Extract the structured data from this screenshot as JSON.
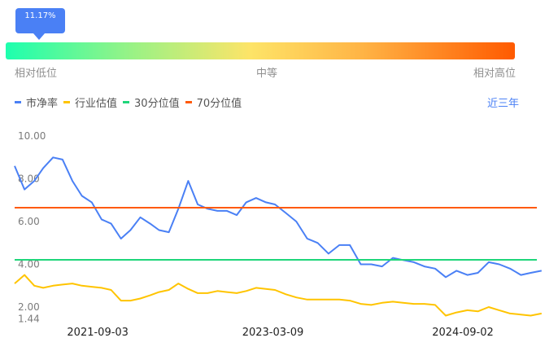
{
  "gauge": {
    "percentile_label": "11.17%",
    "percentile": 11.17,
    "low_label": "相对低位",
    "mid_label": "中等",
    "high_label": "相对高位"
  },
  "legend": [
    {
      "name": "市净率",
      "color": "#4a80f5"
    },
    {
      "name": "行业估值",
      "color": "#ffc400"
    },
    {
      "name": "30分位值",
      "color": "#1fd67a"
    },
    {
      "name": "70分位值",
      "color": "#ff5a0a"
    }
  ],
  "range_button": "近三年",
  "chart_data": {
    "type": "line",
    "ylim": [
      1.44,
      10.0
    ],
    "y_ticks": [
      "10.00",
      "8.00",
      "6.00",
      "4.00",
      "2.00",
      "1.44"
    ],
    "x_ticks": [
      "2021-09-03",
      "2023-03-09",
      "2024-09-02"
    ],
    "grid": false,
    "legend_placement": "top-left",
    "x": [
      "2020-12",
      "2021-01",
      "2021-02",
      "2021-03",
      "2021-04",
      "2021-05",
      "2021-06",
      "2021-07",
      "2021-08",
      "2021-09",
      "2021-10",
      "2021-11",
      "2021-12",
      "2022-01",
      "2022-02",
      "2022-03",
      "2022-04",
      "2022-05",
      "2022-06",
      "2022-07",
      "2022-08",
      "2022-09",
      "2022-10",
      "2022-11",
      "2022-12",
      "2023-01",
      "2023-02",
      "2023-03",
      "2023-04",
      "2023-05",
      "2023-06",
      "2023-07",
      "2023-08",
      "2023-09",
      "2023-10",
      "2023-11",
      "2023-12",
      "2024-01",
      "2024-02",
      "2024-03",
      "2024-04",
      "2024-05",
      "2024-06",
      "2024-07",
      "2024-08",
      "2024-09",
      "2024-10",
      "2024-11",
      "2024-12",
      "2025-01",
      "2025-02",
      "2025-03",
      "2025-04"
    ],
    "series": [
      {
        "name": "市净率",
        "values": [
          8.6,
          7.5,
          7.9,
          8.5,
          9.0,
          8.9,
          7.9,
          7.2,
          6.9,
          6.1,
          5.9,
          5.2,
          5.6,
          6.2,
          5.9,
          5.6,
          5.5,
          6.6,
          7.9,
          6.8,
          6.6,
          6.5,
          6.5,
          6.3,
          6.9,
          7.1,
          6.9,
          6.8,
          6.4,
          6.0,
          5.2,
          5.0,
          4.5,
          4.9,
          4.9,
          4.0,
          4.0,
          3.9,
          4.3,
          4.2,
          4.1,
          3.9,
          3.8,
          3.4,
          3.7,
          3.5,
          3.6,
          4.1,
          4.0,
          3.8,
          3.5,
          3.6,
          3.7
        ]
      },
      {
        "name": "行业估值",
        "values": [
          3.1,
          3.5,
          3.0,
          2.9,
          3.0,
          3.05,
          3.1,
          3.0,
          2.95,
          2.9,
          2.8,
          2.3,
          2.3,
          2.4,
          2.55,
          2.7,
          2.8,
          3.1,
          2.85,
          2.65,
          2.65,
          2.75,
          2.7,
          2.65,
          2.75,
          2.9,
          2.85,
          2.8,
          2.6,
          2.45,
          2.35,
          2.35,
          2.35,
          2.35,
          2.3,
          2.15,
          2.1,
          2.2,
          2.25,
          2.2,
          2.15,
          2.15,
          2.1,
          1.6,
          1.75,
          1.85,
          1.8,
          2.0,
          1.85,
          1.7,
          1.65,
          1.6,
          1.7
        ]
      },
      {
        "name": "30分位值",
        "constant": 4.21
      },
      {
        "name": "70分位值",
        "constant": 6.65
      }
    ]
  }
}
